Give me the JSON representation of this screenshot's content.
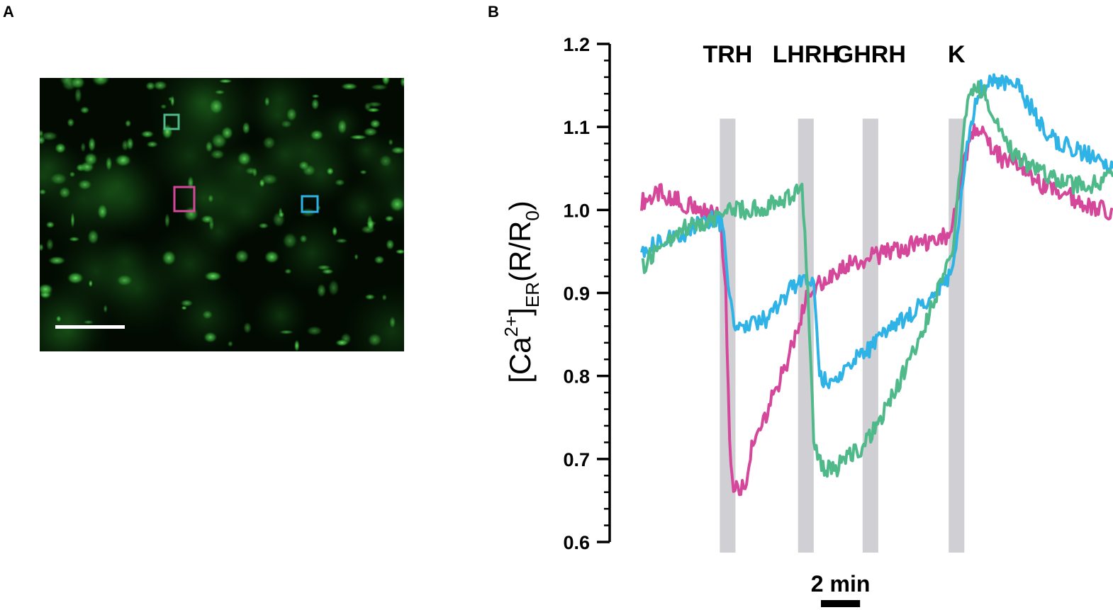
{
  "panels": {
    "a": "A",
    "b": "B"
  },
  "micrograph": {
    "background": "#020a02",
    "roi_colors": {
      "green": "#4fb98a",
      "magenta": "#d4479a",
      "cyan": "#2fb3e6"
    }
  },
  "chart_data": {
    "type": "line",
    "ylabel": {
      "main": "[Ca",
      "sup": "2+",
      "close": "]",
      "sub": "ER",
      "ratio_open": "(R/R",
      "ratio_sub": "0",
      "ratio_close": ")"
    },
    "xlabel": "",
    "ylim": [
      0.6,
      1.2
    ],
    "yticks": [
      0.6,
      0.7,
      0.8,
      0.9,
      1.0,
      1.1,
      1.2
    ],
    "ytick_labels": [
      "0.6",
      "0.7",
      "0.8",
      "0.9",
      "1.0",
      "1.1",
      "1.2"
    ],
    "x_unit": "min",
    "xlim": [
      0,
      24.1
    ],
    "scale_bar": {
      "length_min": 2,
      "label": "2 min"
    },
    "grid": false,
    "stimuli": [
      {
        "label": "TRH",
        "start": 4.0,
        "end": 4.8
      },
      {
        "label": "LHRH",
        "start": 8.0,
        "end": 8.8
      },
      {
        "label": "GHRH",
        "start": 11.3,
        "end": 12.1
      },
      {
        "label": "K",
        "start": 15.7,
        "end": 16.5
      }
    ],
    "series": [
      {
        "color": "#d4479a",
        "points": [
          [
            0,
            1.01
          ],
          [
            1.0,
            1.02
          ],
          [
            2.0,
            1.01
          ],
          [
            3.0,
            1.0
          ],
          [
            4.0,
            0.99
          ],
          [
            4.3,
            0.9
          ],
          [
            4.5,
            0.72
          ],
          [
            4.7,
            0.665
          ],
          [
            5.3,
            0.67
          ],
          [
            5.7,
            0.72
          ],
          [
            6.3,
            0.75
          ],
          [
            6.8,
            0.78
          ],
          [
            7.5,
            0.82
          ],
          [
            8.0,
            0.86
          ],
          [
            8.5,
            0.9
          ],
          [
            9.5,
            0.92
          ],
          [
            10.5,
            0.935
          ],
          [
            12.0,
            0.945
          ],
          [
            13.5,
            0.955
          ],
          [
            15.0,
            0.965
          ],
          [
            15.7,
            0.97
          ],
          [
            16.2,
            1.02
          ],
          [
            16.7,
            1.08
          ],
          [
            17.0,
            1.1
          ],
          [
            17.8,
            1.08
          ],
          [
            18.5,
            1.06
          ],
          [
            19.5,
            1.05
          ],
          [
            20.5,
            1.03
          ],
          [
            21.5,
            1.02
          ],
          [
            22.5,
            1.01
          ],
          [
            23.5,
            1.0
          ],
          [
            24.1,
            1.0
          ]
        ]
      },
      {
        "color": "#2fb3e6",
        "points": [
          [
            0,
            0.95
          ],
          [
            1.0,
            0.96
          ],
          [
            2.0,
            0.97
          ],
          [
            3.0,
            0.985
          ],
          [
            3.8,
            0.99
          ],
          [
            4.2,
            0.98
          ],
          [
            4.5,
            0.89
          ],
          [
            4.8,
            0.86
          ],
          [
            5.5,
            0.86
          ],
          [
            6.5,
            0.87
          ],
          [
            7.5,
            0.9
          ],
          [
            8.0,
            0.915
          ],
          [
            8.8,
            0.92
          ],
          [
            9.1,
            0.8
          ],
          [
            9.5,
            0.79
          ],
          [
            10.5,
            0.81
          ],
          [
            11.5,
            0.83
          ],
          [
            12.5,
            0.85
          ],
          [
            13.5,
            0.87
          ],
          [
            14.5,
            0.89
          ],
          [
            15.5,
            0.91
          ],
          [
            16.0,
            0.94
          ],
          [
            16.5,
            1.05
          ],
          [
            16.8,
            1.1
          ],
          [
            17.2,
            1.14
          ],
          [
            17.8,
            1.16
          ],
          [
            18.5,
            1.15
          ],
          [
            19.2,
            1.15
          ],
          [
            20.0,
            1.12
          ],
          [
            20.8,
            1.09
          ],
          [
            21.5,
            1.08
          ],
          [
            22.5,
            1.07
          ],
          [
            23.5,
            1.06
          ],
          [
            24.1,
            1.05
          ]
        ]
      },
      {
        "color": "#4fb98a",
        "points": [
          [
            0,
            0.93
          ],
          [
            1.0,
            0.96
          ],
          [
            2.0,
            0.975
          ],
          [
            3.0,
            0.985
          ],
          [
            4.0,
            0.99
          ],
          [
            4.5,
            1.0
          ],
          [
            5.5,
            1.0
          ],
          [
            6.5,
            1.005
          ],
          [
            7.5,
            1.015
          ],
          [
            8.0,
            1.02
          ],
          [
            8.2,
            1.03
          ],
          [
            8.5,
            0.9
          ],
          [
            8.8,
            0.72
          ],
          [
            9.2,
            0.69
          ],
          [
            10.0,
            0.69
          ],
          [
            10.5,
            0.7
          ],
          [
            11.5,
            0.72
          ],
          [
            12.5,
            0.76
          ],
          [
            13.5,
            0.81
          ],
          [
            14.5,
            0.86
          ],
          [
            15.5,
            0.93
          ],
          [
            16.0,
            0.96
          ],
          [
            16.3,
            1.05
          ],
          [
            16.6,
            1.12
          ],
          [
            17.0,
            1.15
          ],
          [
            17.6,
            1.14
          ],
          [
            18.2,
            1.1
          ],
          [
            19.0,
            1.07
          ],
          [
            20.0,
            1.05
          ],
          [
            21.0,
            1.04
          ],
          [
            22.0,
            1.03
          ],
          [
            23.0,
            1.03
          ],
          [
            24.1,
            1.04
          ]
        ]
      }
    ]
  }
}
